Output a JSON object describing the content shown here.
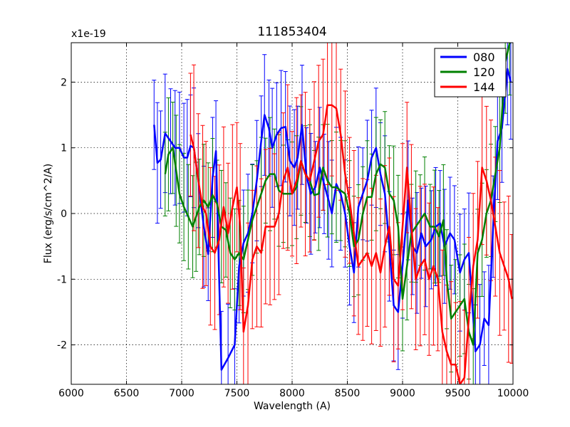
{
  "chart_data": {
    "type": "line",
    "title": "111853404",
    "xlabel": "Wavelength (A)",
    "ylabel": "Flux (erg/s/cm^2/A)",
    "scale_label": "x1e-19",
    "xlim": [
      6000,
      10000
    ],
    "ylim": [
      -2.6,
      2.6
    ],
    "xticks": [
      6000,
      6500,
      7000,
      7500,
      8000,
      8500,
      9000,
      9500,
      10000
    ],
    "yticks": [
      -2,
      -1,
      0,
      1,
      2
    ],
    "grid": true,
    "legend_position": "top-right",
    "series": [
      {
        "name": "080",
        "color": "#0000ff",
        "points": [
          [
            6750,
            1.35
          ],
          [
            6780,
            0.77
          ],
          [
            6810,
            0.82
          ],
          [
            6850,
            1.22
          ],
          [
            6900,
            1.1
          ],
          [
            6940,
            1.0
          ],
          [
            6980,
            1.0
          ],
          [
            7020,
            0.85
          ],
          [
            7050,
            0.85
          ],
          [
            7080,
            1.03
          ],
          [
            7110,
            1.0
          ],
          [
            7150,
            0.5
          ],
          [
            7200,
            -0.2
          ],
          [
            7240,
            -0.62
          ],
          [
            7280,
            0.55
          ],
          [
            7310,
            0.95
          ],
          [
            7360,
            -2.38
          ],
          [
            7420,
            -2.2
          ],
          [
            7480,
            -2.0
          ],
          [
            7520,
            -0.8
          ],
          [
            7560,
            -0.45
          ],
          [
            7600,
            -0.3
          ],
          [
            7640,
            0.0
          ],
          [
            7680,
            0.5
          ],
          [
            7720,
            1.1
          ],
          [
            7750,
            1.5
          ],
          [
            7790,
            1.3
          ],
          [
            7820,
            1.0
          ],
          [
            7860,
            1.2
          ],
          [
            7900,
            1.3
          ],
          [
            7940,
            1.32
          ],
          [
            7980,
            0.8
          ],
          [
            8020,
            0.7
          ],
          [
            8050,
            0.85
          ],
          [
            8090,
            1.35
          ],
          [
            8130,
            0.58
          ],
          [
            8170,
            0.3
          ],
          [
            8210,
            0.4
          ],
          [
            8250,
            0.7
          ],
          [
            8290,
            0.45
          ],
          [
            8330,
            0.2
          ],
          [
            8360,
            0.0
          ],
          [
            8400,
            0.45
          ],
          [
            8440,
            0.3
          ],
          [
            8480,
            0.0
          ],
          [
            8520,
            -0.5
          ],
          [
            8560,
            -0.9
          ],
          [
            8600,
            0.1
          ],
          [
            8640,
            0.3
          ],
          [
            8680,
            0.5
          ],
          [
            8720,
            0.85
          ],
          [
            8760,
            1.0
          ],
          [
            8800,
            0.6
          ],
          [
            8840,
            0.3
          ],
          [
            8880,
            -0.5
          ],
          [
            8920,
            -1.4
          ],
          [
            8960,
            -1.5
          ],
          [
            9000,
            -0.8
          ],
          [
            9050,
            0.2
          ],
          [
            9090,
            -0.5
          ],
          [
            9130,
            -0.6
          ],
          [
            9170,
            -0.3
          ],
          [
            9210,
            -0.5
          ],
          [
            9260,
            -0.4
          ],
          [
            9300,
            -0.2
          ],
          [
            9340,
            -0.15
          ],
          [
            9380,
            -0.5
          ],
          [
            9430,
            -0.3
          ],
          [
            9470,
            -0.4
          ],
          [
            9520,
            -0.9
          ],
          [
            9560,
            -0.7
          ],
          [
            9600,
            -0.6
          ],
          [
            9660,
            -2.1
          ],
          [
            9700,
            -2.0
          ],
          [
            9740,
            -1.6
          ],
          [
            9780,
            -1.7
          ],
          [
            9820,
            -0.2
          ],
          [
            9860,
            1.1
          ],
          [
            9900,
            1.3
          ],
          [
            9950,
            2.2
          ],
          [
            9980,
            2.0
          ]
        ],
        "error": 0.8
      },
      {
        "name": "120",
        "color": "#008000",
        "points": [
          [
            6850,
            0.6
          ],
          [
            6880,
            0.9
          ],
          [
            6920,
            1.0
          ],
          [
            6950,
            0.65
          ],
          [
            6980,
            0.3
          ],
          [
            7020,
            0.1
          ],
          [
            7060,
            -0.05
          ],
          [
            7100,
            -0.2
          ],
          [
            7130,
            -0.05
          ],
          [
            7160,
            0.1
          ],
          [
            7200,
            0.2
          ],
          [
            7240,
            0.1
          ],
          [
            7280,
            0.28
          ],
          [
            7320,
            0.15
          ],
          [
            7360,
            -0.2
          ],
          [
            7400,
            -0.25
          ],
          [
            7440,
            -0.6
          ],
          [
            7480,
            -0.7
          ],
          [
            7520,
            -0.6
          ],
          [
            7560,
            -0.7
          ],
          [
            7600,
            -0.4
          ],
          [
            7640,
            -0.1
          ],
          [
            7680,
            0.1
          ],
          [
            7720,
            0.3
          ],
          [
            7760,
            0.5
          ],
          [
            7800,
            0.6
          ],
          [
            7840,
            0.6
          ],
          [
            7880,
            0.35
          ],
          [
            7920,
            0.3
          ],
          [
            7960,
            0.3
          ],
          [
            8000,
            0.3
          ],
          [
            8040,
            0.4
          ],
          [
            8080,
            0.8
          ],
          [
            8120,
            0.6
          ],
          [
            8160,
            0.5
          ],
          [
            8200,
            0.28
          ],
          [
            8240,
            0.3
          ],
          [
            8280,
            0.7
          ],
          [
            8320,
            0.5
          ],
          [
            8360,
            0.4
          ],
          [
            8400,
            0.4
          ],
          [
            8440,
            0.35
          ],
          [
            8480,
            0.3
          ],
          [
            8520,
            0.0
          ],
          [
            8560,
            -0.5
          ],
          [
            8600,
            -0.4
          ],
          [
            8640,
            0.0
          ],
          [
            8680,
            0.25
          ],
          [
            8720,
            0.25
          ],
          [
            8760,
            0.6
          ],
          [
            8800,
            0.75
          ],
          [
            8840,
            0.7
          ],
          [
            8880,
            0.3
          ],
          [
            8920,
            0.2
          ],
          [
            8960,
            -0.2
          ],
          [
            9000,
            -1.3
          ],
          [
            9040,
            -0.8
          ],
          [
            9080,
            -0.3
          ],
          [
            9120,
            -0.2
          ],
          [
            9160,
            -0.1
          ],
          [
            9200,
            0.0
          ],
          [
            9250,
            -0.2
          ],
          [
            9290,
            -0.2
          ],
          [
            9330,
            -0.35
          ],
          [
            9370,
            -0.1
          ],
          [
            9400,
            -1.0
          ],
          [
            9440,
            -1.6
          ],
          [
            9480,
            -1.5
          ],
          [
            9520,
            -1.4
          ],
          [
            9560,
            -1.3
          ],
          [
            9600,
            -1.8
          ],
          [
            9640,
            -2.0
          ],
          [
            9680,
            -0.6
          ],
          [
            9720,
            -0.4
          ],
          [
            9760,
            0.0
          ],
          [
            9800,
            0.2
          ],
          [
            9840,
            0.6
          ],
          [
            9880,
            1.0
          ],
          [
            9930,
            2.3
          ],
          [
            9970,
            2.6
          ]
        ],
        "error": 0.75
      },
      {
        "name": "144",
        "color": "#ff0000",
        "points": [
          [
            7080,
            1.2
          ],
          [
            7110,
            1.0
          ],
          [
            7150,
            0.5
          ],
          [
            7190,
            0.1
          ],
          [
            7220,
            0.0
          ],
          [
            7260,
            -0.5
          ],
          [
            7300,
            -0.6
          ],
          [
            7340,
            -0.4
          ],
          [
            7380,
            0.1
          ],
          [
            7420,
            -0.3
          ],
          [
            7460,
            0.1
          ],
          [
            7500,
            0.4
          ],
          [
            7530,
            -0.2
          ],
          [
            7560,
            -1.8
          ],
          [
            7600,
            -1.4
          ],
          [
            7640,
            -0.7
          ],
          [
            7680,
            -0.5
          ],
          [
            7720,
            -0.6
          ],
          [
            7760,
            -0.2
          ],
          [
            7800,
            -0.2
          ],
          [
            7840,
            -0.2
          ],
          [
            7880,
            0.0
          ],
          [
            7920,
            0.5
          ],
          [
            7960,
            0.7
          ],
          [
            8000,
            0.3
          ],
          [
            8040,
            0.5
          ],
          [
            8080,
            0.8
          ],
          [
            8120,
            0.6
          ],
          [
            8160,
            0.5
          ],
          [
            8200,
            0.8
          ],
          [
            8240,
            1.1
          ],
          [
            8280,
            1.2
          ],
          [
            8320,
            1.65
          ],
          [
            8360,
            1.65
          ],
          [
            8400,
            1.6
          ],
          [
            8440,
            1.2
          ],
          [
            8480,
            0.6
          ],
          [
            8520,
            0.2
          ],
          [
            8560,
            -0.3
          ],
          [
            8600,
            -0.8
          ],
          [
            8640,
            -0.7
          ],
          [
            8680,
            -0.6
          ],
          [
            8720,
            -0.8
          ],
          [
            8760,
            -0.6
          ],
          [
            8800,
            -0.9
          ],
          [
            8840,
            -0.5
          ],
          [
            8880,
            -0.2
          ],
          [
            8920,
            -1.0
          ],
          [
            8960,
            -1.1
          ],
          [
            9000,
            -0.2
          ],
          [
            9040,
            0.7
          ],
          [
            9080,
            -0.2
          ],
          [
            9120,
            -1.0
          ],
          [
            9160,
            -0.8
          ],
          [
            9200,
            -0.7
          ],
          [
            9240,
            -1.0
          ],
          [
            9280,
            -0.8
          ],
          [
            9320,
            -1.0
          ],
          [
            9360,
            -1.8
          ],
          [
            9400,
            -2.1
          ],
          [
            9440,
            -2.3
          ],
          [
            9480,
            -2.3
          ],
          [
            9520,
            -2.6
          ],
          [
            9560,
            -2.5
          ],
          [
            9600,
            -1.6
          ],
          [
            9640,
            -0.8
          ],
          [
            9680,
            -0.4
          ],
          [
            9720,
            0.7
          ],
          [
            9760,
            0.5
          ],
          [
            9800,
            0.2
          ],
          [
            9840,
            -0.2
          ],
          [
            9880,
            -0.6
          ],
          [
            9920,
            -0.8
          ],
          [
            9960,
            -1.0
          ],
          [
            9990,
            -1.3
          ]
        ],
        "error": 1.1
      }
    ]
  }
}
